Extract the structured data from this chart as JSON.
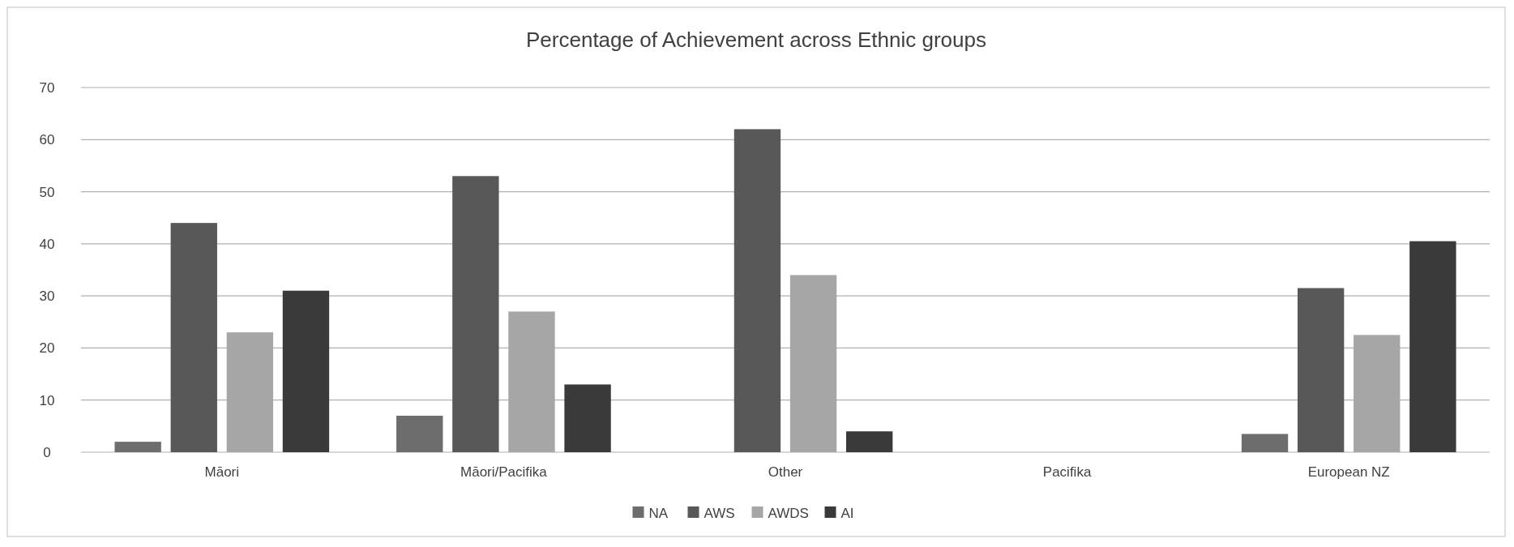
{
  "chart_data": {
    "type": "bar",
    "title": "Percentage of Achievement across Ethnic groups",
    "categories": [
      "Māori",
      "Māori/Pacifika",
      "Other",
      "Pacifika",
      "European NZ"
    ],
    "series": [
      {
        "name": "NA",
        "color": "#6d6d6d",
        "values": [
          2,
          7,
          0,
          0,
          3.5
        ]
      },
      {
        "name": "AWS",
        "color": "#585858",
        "values": [
          44,
          53,
          62,
          0,
          31.5
        ]
      },
      {
        "name": "AWDS",
        "color": "#a6a6a6",
        "values": [
          23,
          27,
          34,
          0,
          22.5
        ]
      },
      {
        "name": "AI",
        "color": "#3a3a3a",
        "values": [
          31,
          13,
          4,
          0,
          40.5
        ]
      }
    ],
    "ylim": [
      0,
      70
    ],
    "yticks": [
      0,
      10,
      20,
      30,
      40,
      50,
      60,
      70
    ],
    "grid": "y",
    "legend": "bottom"
  }
}
